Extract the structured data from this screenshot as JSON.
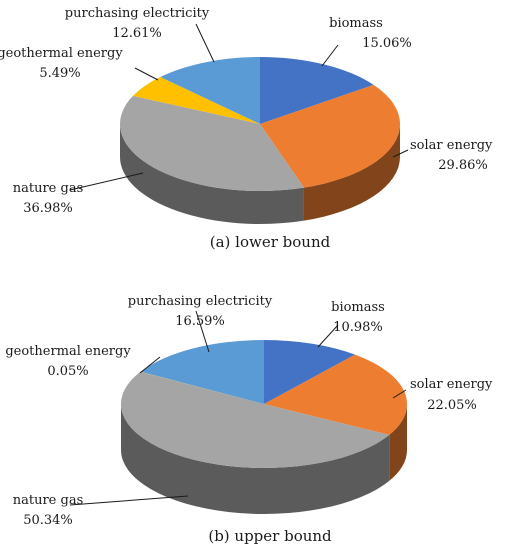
{
  "colors": {
    "biomass": "#4472C4",
    "solar_energy": "#ED7D31",
    "nature_gas": "#A5A5A5",
    "geothermal_energy": "#FFC000",
    "purchasing_electricity": "#5B9BD5"
  },
  "chart_data": [
    {
      "type": "pie",
      "style": "3d",
      "caption": "(a) lower bound",
      "series": [
        {
          "name": "biomass",
          "value": 15.06,
          "label": "15.06%"
        },
        {
          "name": "solar energy",
          "value": 29.86,
          "label": "29.86%"
        },
        {
          "name": "nature gas",
          "value": 36.98,
          "label": "36.98%"
        },
        {
          "name": "geothermal energy",
          "value": 5.49,
          "label": "5.49%"
        },
        {
          "name": "purchasing electricity",
          "value": 12.61,
          "label": "12.61%"
        }
      ]
    },
    {
      "type": "pie",
      "style": "3d",
      "caption": "(b) upper bound",
      "series": [
        {
          "name": "biomass",
          "value": 10.98,
          "label": "10.98%"
        },
        {
          "name": "solar energy",
          "value": 22.05,
          "label": "22.05%"
        },
        {
          "name": "nature gas",
          "value": 50.34,
          "label": "50.34%"
        },
        {
          "name": "geothermal energy",
          "value": 0.05,
          "label": "0.05%"
        },
        {
          "name": "purchasing electricity",
          "value": 16.59,
          "label": "16.59%"
        }
      ]
    }
  ]
}
